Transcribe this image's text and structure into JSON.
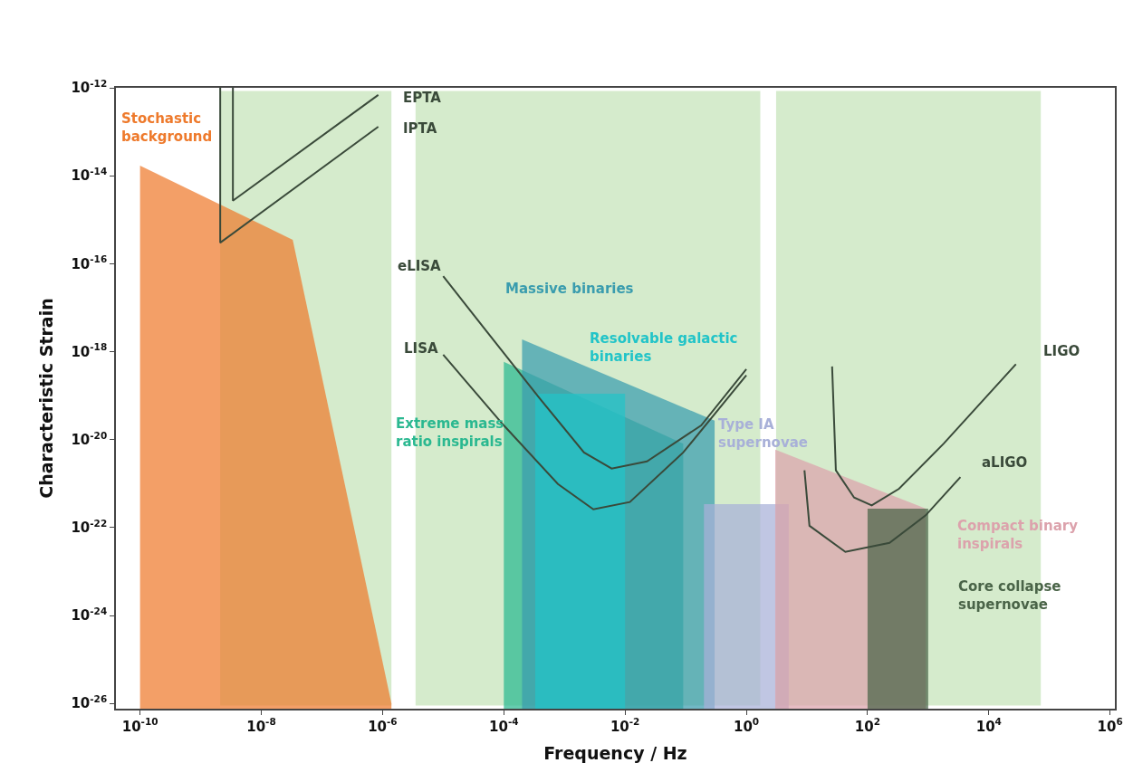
{
  "chart_data": {
    "type": "line",
    "xlabel": "Frequency / Hz",
    "ylabel": "Characteristic Strain",
    "log": "xy",
    "grid": false,
    "legend": false,
    "marker": "none",
    "line_style": "solid",
    "xlim": [
      4e-11,
      1200000.0
    ],
    "ylim": [
      7.6e-27,
      1e-12
    ],
    "xticks": [
      {
        "value": 1e-10,
        "label": "10$^{-10}$"
      },
      {
        "value": 1e-08,
        "label": "10$^{-8}$"
      },
      {
        "value": 1e-06,
        "label": "10$^{-6}$"
      },
      {
        "value": 0.0001,
        "label": "10$^{-4}$"
      },
      {
        "value": 0.01,
        "label": "10$^{-2}$"
      },
      {
        "value": 1,
        "label": "10$^{0}$"
      },
      {
        "value": 100,
        "label": "10$^{2}$"
      },
      {
        "value": 10000,
        "label": "10$^{4}$"
      },
      {
        "value": 1000000,
        "label": "10$^{6}$"
      }
    ],
    "yticks": [
      {
        "value": 1e-26,
        "label": "10$^{-26}$"
      },
      {
        "value": 1e-24,
        "label": "10$^{-24}$"
      },
      {
        "value": 1e-22,
        "label": "10$^{-22}$"
      },
      {
        "value": 1e-20,
        "label": "10$^{-20}$"
      },
      {
        "value": 1e-18,
        "label": "10$^{-18}$"
      },
      {
        "value": 1e-16,
        "label": "10$^{-16}$"
      },
      {
        "value": 1e-14,
        "label": "10$^{-14}$"
      },
      {
        "value": 1e-12,
        "label": "10$^{-12}$"
      }
    ],
    "bands": [
      {
        "axis": "x",
        "from": 2.1e-09,
        "to": 1.4e-06,
        "color": "#d5ebcc"
      },
      {
        "axis": "x",
        "from": 3.5e-06,
        "to": 1.7,
        "color": "#d5ebcc"
      },
      {
        "axis": "x",
        "from": 3.1,
        "to": 72000.0,
        "color": "#d5ebcc"
      }
    ],
    "series": [
      {
        "name": "Stochastic\nbackground",
        "type": "area",
        "color": "#ee7a2c",
        "x": [
          1e-10,
          3.3e-08,
          1.4e-06
        ],
        "values": [
          1.7e-14,
          3.5e-16,
          1e-26
        ]
      },
      {
        "name": "Extreme mass\nratio inspirals",
        "type": "area",
        "color": "#2ab890",
        "x": [
          0.0001,
          0.091
        ],
        "values": [
          5.9e-19,
          8.1e-21
        ]
      },
      {
        "name": "Massive binaries",
        "type": "area",
        "color": "#3a9cae",
        "x": [
          0.0002,
          0.3
        ],
        "values": [
          1.9e-18,
          2.7e-20
        ]
      },
      {
        "name": "Resolvable galactic\nbinaries",
        "type": "area",
        "color": "#22c4c8",
        "x": [
          0.00033,
          0.01
        ],
        "values": [
          1.1e-19,
          1.1e-19
        ]
      },
      {
        "name": "Type IA\nsupernovae",
        "type": "area",
        "color": "#a8b0d8",
        "x": [
          0.2,
          5.0
        ],
        "values": [
          3.4e-22,
          3.4e-22
        ]
      },
      {
        "name": "Compact binary\ninspirals",
        "type": "area",
        "color": "#dca2ac",
        "x": [
          3.0,
          910
        ],
        "values": [
          5.9e-21,
          2.7e-22
        ]
      },
      {
        "name": "Core collapse\nsupernovae",
        "type": "area",
        "color": "#4a6448",
        "x": [
          100,
          1000
        ],
        "values": [
          2.7e-22,
          2.7e-22
        ]
      },
      {
        "name": "EPTA",
        "color": "#3a4a3a",
        "x": [
          3.4e-09,
          3.4e-09,
          8.5e-07
        ],
        "values": [
          1e-12,
          2.7e-15,
          6.9e-13
        ]
      },
      {
        "name": "IPTA",
        "color": "#3a4a3a",
        "x": [
          2.1e-09,
          2.1e-09,
          8.5e-07
        ],
        "values": [
          1e-12,
          3e-16,
          1.3e-13
        ]
      },
      {
        "name": "eLISA",
        "color": "#3a4a3a",
        "x": [
          1e-05,
          5e-05,
          0.00039,
          0.0021,
          0.006,
          0.023,
          0.18,
          1
        ],
        "values": [
          5.2e-17,
          3.1e-18,
          8.7e-20,
          5.1e-21,
          2.2e-21,
          3.2e-21,
          2.1e-20,
          4e-19
        ]
      },
      {
        "name": "LISA",
        "color": "#3a4a3a",
        "x": [
          1e-05,
          0.0001,
          0.00078,
          0.003,
          0.012,
          0.091,
          1
        ],
        "values": [
          8.5e-19,
          2.1e-20,
          9.8e-22,
          2.6e-22,
          3.8e-22,
          5.1e-21,
          2.9e-19
        ]
      },
      {
        "name": "LIGO",
        "color": "#3a4a3a",
        "x": [
          26,
          30,
          60,
          117,
          330,
          1800,
          28000.0
        ],
        "values": [
          4.6e-19,
          2e-21,
          4.8e-22,
          3.2e-22,
          7.6e-22,
          8.1e-21,
          5.2e-19
        ]
      },
      {
        "name": "aLIGO",
        "color": "#3a4a3a",
        "x": [
          9.1,
          11,
          43,
          230,
          910,
          3400
        ],
        "values": [
          2e-21,
          1.1e-22,
          2.8e-23,
          4.5e-23,
          1.9e-22,
          1.4e-21
        ]
      }
    ]
  }
}
